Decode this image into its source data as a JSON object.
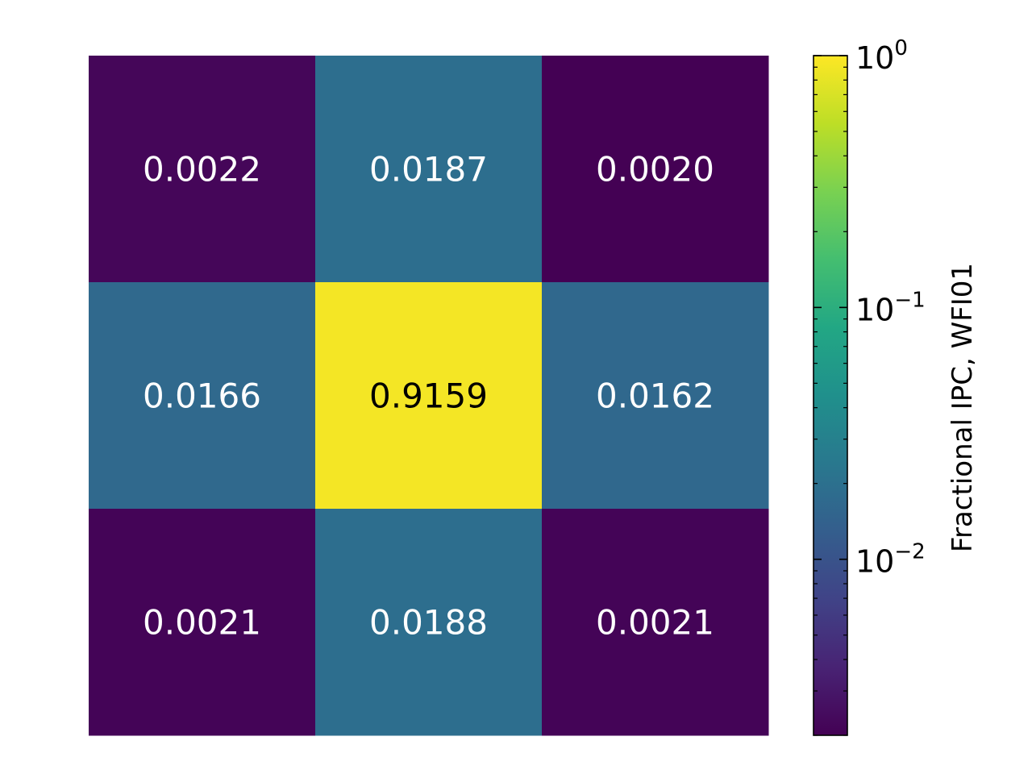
{
  "chart_data": {
    "type": "heatmap",
    "rows": 3,
    "cols": 3,
    "values": [
      [
        0.0022,
        0.0187,
        0.002
      ],
      [
        0.0166,
        0.9159,
        0.0162
      ],
      [
        0.0021,
        0.0188,
        0.0021
      ]
    ],
    "cell_labels": [
      [
        "0.0022",
        "0.0187",
        "0.0020"
      ],
      [
        "0.0166",
        "0.9159",
        "0.0162"
      ],
      [
        "0.0021",
        "0.0188",
        "0.0021"
      ]
    ],
    "colormap": "viridis",
    "color_scale": "log",
    "color_range": [
      0.002,
      1.0
    ],
    "grid": false,
    "colorbar": {
      "label": "Fractional IPC, WFI01",
      "placement": "right",
      "major_ticks": [
        {
          "value": 1,
          "base": "10",
          "exp": "0"
        },
        {
          "value": 0.1,
          "base": "10",
          "exp": "−1"
        },
        {
          "value": 0.01,
          "base": "10",
          "exp": "−2"
        }
      ]
    }
  }
}
